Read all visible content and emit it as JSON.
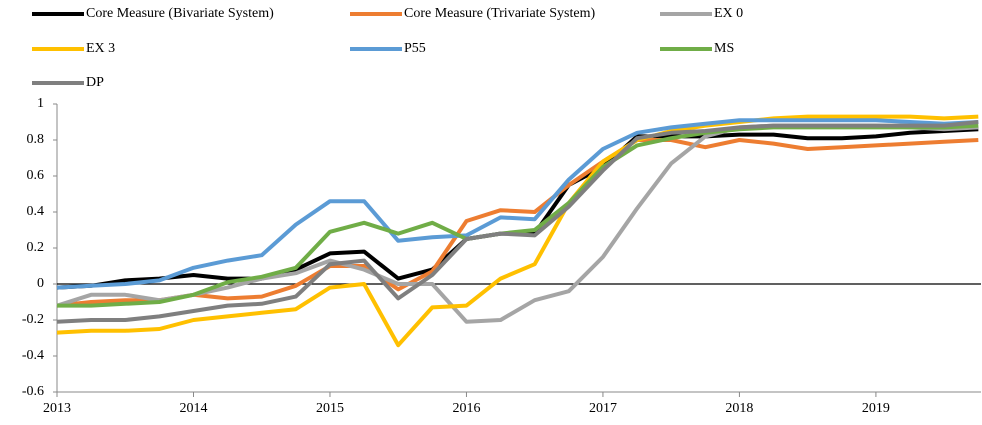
{
  "chart_data": {
    "type": "line",
    "x": [
      2013,
      2013.25,
      2013.5,
      2013.75,
      2014,
      2014.25,
      2014.5,
      2014.75,
      2015,
      2015.25,
      2015.5,
      2015.75,
      2016,
      2016.25,
      2016.5,
      2016.75,
      2017,
      2017.25,
      2017.5,
      2017.75,
      2018,
      2018.25,
      2018.5,
      2018.75,
      2019,
      2019.25,
      2019.5,
      2019.75
    ],
    "series": [
      {
        "name": "Core Measure (Bivariate System)",
        "color": "#000000",
        "values": [
          -0.02,
          -0.01,
          0.02,
          0.03,
          0.05,
          0.03,
          0.03,
          0.08,
          0.17,
          0.18,
          0.03,
          0.08,
          0.25,
          0.28,
          0.28,
          0.55,
          0.65,
          0.82,
          0.82,
          0.82,
          0.83,
          0.83,
          0.81,
          0.81,
          0.82,
          0.84,
          0.85,
          0.86
        ]
      },
      {
        "name": "Core Measure (Trivariate System)",
        "color": "#ed7d31",
        "values": [
          -0.12,
          -0.1,
          -0.09,
          -0.09,
          -0.06,
          -0.08,
          -0.07,
          -0.01,
          0.1,
          0.1,
          -0.03,
          0.07,
          0.35,
          0.41,
          0.4,
          0.55,
          0.68,
          0.8,
          0.8,
          0.76,
          0.8,
          0.78,
          0.75,
          0.76,
          0.77,
          0.78,
          0.79,
          0.8
        ]
      },
      {
        "name": "EX 0",
        "color": "#a5a5a5",
        "values": [
          -0.12,
          -0.06,
          -0.06,
          -0.09,
          -0.06,
          -0.02,
          0.03,
          0.06,
          0.13,
          0.08,
          0.0,
          0.0,
          -0.21,
          -0.2,
          -0.09,
          -0.04,
          0.15,
          0.42,
          0.67,
          0.82,
          0.87,
          0.88,
          0.88,
          0.88,
          0.88,
          0.87,
          0.86,
          0.87
        ]
      },
      {
        "name": "EX 3",
        "color": "#ffc000",
        "values": [
          -0.27,
          -0.26,
          -0.26,
          -0.25,
          -0.2,
          -0.18,
          -0.16,
          -0.14,
          -0.02,
          0.0,
          -0.34,
          -0.13,
          -0.12,
          0.03,
          0.11,
          0.45,
          0.68,
          0.8,
          0.85,
          0.88,
          0.9,
          0.92,
          0.93,
          0.93,
          0.93,
          0.93,
          0.92,
          0.93
        ]
      },
      {
        "name": "P55",
        "color": "#5b9bd5",
        "values": [
          -0.02,
          -0.01,
          0.0,
          0.02,
          0.09,
          0.13,
          0.16,
          0.33,
          0.46,
          0.46,
          0.24,
          0.26,
          0.27,
          0.37,
          0.36,
          0.58,
          0.75,
          0.84,
          0.87,
          0.89,
          0.91,
          0.91,
          0.91,
          0.91,
          0.91,
          0.9,
          0.89,
          0.9
        ]
      },
      {
        "name": "MS",
        "color": "#70ad47",
        "values": [
          -0.12,
          -0.12,
          -0.11,
          -0.1,
          -0.06,
          0.01,
          0.04,
          0.09,
          0.29,
          0.34,
          0.28,
          0.34,
          0.25,
          0.28,
          0.3,
          0.45,
          0.65,
          0.77,
          0.81,
          0.84,
          0.86,
          0.87,
          0.87,
          0.87,
          0.87,
          0.87,
          0.87,
          0.88
        ]
      },
      {
        "name": "DP",
        "color": "#7f7f7f",
        "values": [
          -0.21,
          -0.2,
          -0.2,
          -0.18,
          -0.15,
          -0.12,
          -0.11,
          -0.07,
          0.11,
          0.13,
          -0.08,
          0.05,
          0.25,
          0.28,
          0.27,
          0.43,
          0.63,
          0.81,
          0.84,
          0.85,
          0.87,
          0.88,
          0.88,
          0.88,
          0.88,
          0.88,
          0.88,
          0.9
        ]
      }
    ],
    "xlim": [
      2013,
      2019.77
    ],
    "xticks": [
      2013,
      2014,
      2015,
      2016,
      2017,
      2018,
      2019
    ],
    "ylim": [
      -0.6,
      1
    ],
    "yticks": [
      -0.6,
      -0.4,
      -0.2,
      0,
      0.2,
      0.4,
      0.6,
      0.8,
      1
    ],
    "grid": false
  }
}
